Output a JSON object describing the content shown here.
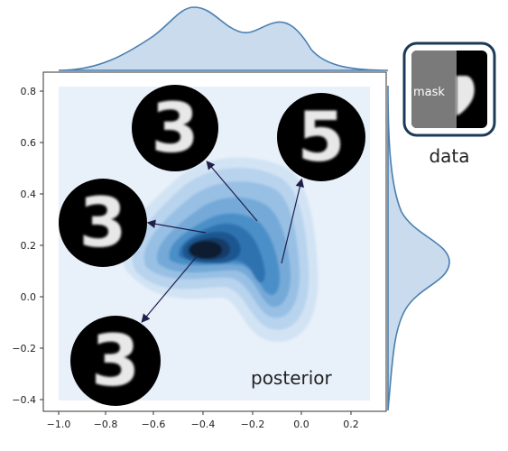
{
  "annotations": {
    "posterior": "posterior",
    "data": "data",
    "mask": "mask"
  },
  "axes": {
    "x_ticks": [
      "−1.0",
      "−0.8",
      "−0.6",
      "−0.4",
      "−0.2",
      "0.0",
      "0.2"
    ],
    "y_ticks": [
      "0.8",
      "0.6",
      "0.4",
      "0.2",
      "0.0",
      "−0.2",
      "−0.4"
    ]
  },
  "colors": {
    "kde_light": "#e8f0fa",
    "kde_dark": "#0b1a2e",
    "kde_mid": "#3b84c4",
    "marginal_fill": "#c9dbed",
    "marginal_line": "#4a7fb0",
    "badge_border": "#1c3a57",
    "arrow": "#1f1f4a"
  },
  "digit_samples": [
    {
      "glyph": "3"
    },
    {
      "glyph": "5"
    },
    {
      "glyph": "3"
    },
    {
      "glyph": "3"
    }
  ]
}
